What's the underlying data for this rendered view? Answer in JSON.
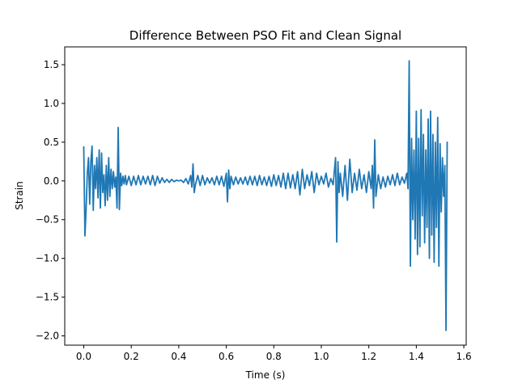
{
  "chart_data": {
    "type": "line",
    "title": "Difference Between PSO Fit and Clean Signal",
    "xlabel": "Time (s)",
    "ylabel": "Strain",
    "xlim": [
      -0.08,
      1.61
    ],
    "ylim": [
      -2.12,
      1.73
    ],
    "xticks": [
      0.0,
      0.2,
      0.4,
      0.6,
      0.8,
      1.0,
      1.2,
      1.4,
      1.6
    ],
    "xtick_labels": [
      "0.0",
      "0.2",
      "0.4",
      "0.6",
      "0.8",
      "1.0",
      "1.2",
      "1.4",
      "1.6"
    ],
    "yticks": [
      -2.0,
      -1.5,
      -1.0,
      -0.5,
      0.0,
      0.5,
      1.0,
      1.5
    ],
    "ytick_labels": [
      "−2.0",
      "−1.5",
      "−1.0",
      "−0.5",
      "0.0",
      "0.5",
      "1.0",
      "1.5"
    ],
    "grid": false,
    "color": "#1f77b4",
    "series": [
      {
        "x": [
          0.0,
          0.005,
          0.01,
          0.015,
          0.02,
          0.025,
          0.03,
          0.035,
          0.04,
          0.045,
          0.05,
          0.055,
          0.06,
          0.065,
          0.07,
          0.075,
          0.08,
          0.085,
          0.09,
          0.095,
          0.1,
          0.105,
          0.11,
          0.115,
          0.12,
          0.125,
          0.13,
          0.135,
          0.14,
          0.145,
          0.15,
          0.155,
          0.16,
          0.165,
          0.17,
          0.175,
          0.18,
          0.19,
          0.2,
          0.21,
          0.22,
          0.23,
          0.24,
          0.25,
          0.26,
          0.27,
          0.28,
          0.29,
          0.3,
          0.31,
          0.32,
          0.33,
          0.34,
          0.35,
          0.36,
          0.37,
          0.38,
          0.39,
          0.4,
          0.41,
          0.42,
          0.43,
          0.44,
          0.45,
          0.455,
          0.46,
          0.465,
          0.47,
          0.48,
          0.49,
          0.5,
          0.51,
          0.52,
          0.53,
          0.54,
          0.55,
          0.56,
          0.57,
          0.58,
          0.59,
          0.6,
          0.605,
          0.61,
          0.615,
          0.62,
          0.63,
          0.64,
          0.65,
          0.66,
          0.67,
          0.68,
          0.69,
          0.7,
          0.71,
          0.72,
          0.73,
          0.74,
          0.75,
          0.76,
          0.77,
          0.78,
          0.79,
          0.8,
          0.81,
          0.82,
          0.83,
          0.84,
          0.85,
          0.86,
          0.87,
          0.88,
          0.89,
          0.9,
          0.91,
          0.92,
          0.93,
          0.94,
          0.95,
          0.96,
          0.97,
          0.98,
          0.99,
          1.0,
          1.01,
          1.02,
          1.03,
          1.04,
          1.05,
          1.06,
          1.065,
          1.07,
          1.075,
          1.08,
          1.09,
          1.1,
          1.11,
          1.12,
          1.13,
          1.14,
          1.15,
          1.16,
          1.17,
          1.18,
          1.19,
          1.2,
          1.21,
          1.215,
          1.22,
          1.225,
          1.23,
          1.24,
          1.25,
          1.26,
          1.27,
          1.28,
          1.29,
          1.3,
          1.31,
          1.32,
          1.33,
          1.34,
          1.35,
          1.36,
          1.365,
          1.37,
          1.375,
          1.38,
          1.385,
          1.39,
          1.395,
          1.4,
          1.405,
          1.41,
          1.415,
          1.42,
          1.425,
          1.43,
          1.435,
          1.44,
          1.445,
          1.45,
          1.455,
          1.46,
          1.465,
          1.47,
          1.475,
          1.48,
          1.485,
          1.49,
          1.495,
          1.5,
          1.505,
          1.51,
          1.515,
          1.52,
          1.525,
          1.53
        ],
        "y": [
          0.44,
          -0.71,
          -0.35,
          0.1,
          0.3,
          -0.3,
          0.25,
          0.45,
          -0.38,
          0.2,
          -0.1,
          0.3,
          -0.22,
          0.4,
          -0.35,
          0.36,
          -0.15,
          0.08,
          -0.32,
          0.2,
          -0.25,
          0.3,
          -0.2,
          0.15,
          -0.1,
          0.12,
          -0.08,
          0.05,
          -0.35,
          0.69,
          -0.37,
          0.1,
          -0.06,
          0.06,
          -0.04,
          0.07,
          -0.05,
          0.06,
          -0.06,
          0.06,
          -0.05,
          0.07,
          -0.05,
          0.06,
          -0.04,
          0.06,
          -0.05,
          0.07,
          -0.06,
          0.06,
          -0.03,
          0.04,
          -0.02,
          0.02,
          -0.02,
          0.02,
          -0.01,
          0.01,
          0.0,
          0.01,
          -0.02,
          0.03,
          -0.04,
          0.07,
          -0.08,
          0.22,
          -0.15,
          -0.05,
          0.07,
          -0.06,
          0.07,
          -0.05,
          0.04,
          -0.03,
          0.04,
          -0.05,
          0.06,
          -0.05,
          0.06,
          -0.07,
          0.1,
          -0.27,
          0.14,
          -0.1,
          0.06,
          -0.05,
          0.05,
          -0.04,
          0.04,
          -0.04,
          0.05,
          -0.05,
          0.06,
          -0.05,
          0.06,
          -0.06,
          0.07,
          -0.05,
          0.05,
          -0.06,
          0.06,
          -0.07,
          0.08,
          -0.06,
          0.07,
          -0.08,
          0.1,
          -0.1,
          0.1,
          -0.09,
          0.08,
          -0.1,
          0.12,
          -0.18,
          0.15,
          -0.1,
          0.08,
          -0.06,
          0.12,
          -0.15,
          0.1,
          -0.05,
          0.06,
          -0.04,
          0.1,
          -0.08,
          0.03,
          -0.05,
          0.3,
          -0.79,
          0.25,
          -0.15,
          0.1,
          -0.2,
          0.2,
          -0.25,
          0.28,
          -0.15,
          0.1,
          -0.12,
          0.15,
          -0.1,
          0.08,
          -0.15,
          0.12,
          -0.1,
          0.2,
          -0.35,
          0.53,
          -0.2,
          0.08,
          -0.1,
          0.05,
          -0.08,
          0.06,
          -0.05,
          0.08,
          -0.06,
          0.1,
          -0.05,
          0.05,
          -0.03,
          0.1,
          -0.1,
          1.55,
          -1.1,
          0.55,
          -0.5,
          0.4,
          -0.75,
          0.9,
          -0.95,
          0.55,
          -0.85,
          0.92,
          -0.45,
          0.6,
          -0.8,
          0.4,
          -0.6,
          0.8,
          -1.0,
          0.9,
          -0.7,
          0.6,
          -1.05,
          0.5,
          -0.6,
          0.82,
          -1.1,
          0.48,
          -0.4,
          0.3,
          -0.2,
          0.2,
          -1.93,
          0.5
        ]
      }
    ]
  }
}
